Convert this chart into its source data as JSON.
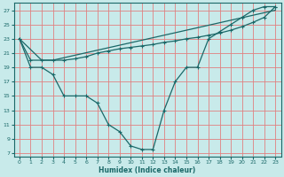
{
  "xlabel": "Humidex (Indice chaleur)",
  "bg_color": "#c8eaea",
  "grid_color": "#e08080",
  "line_color": "#1a6868",
  "xlim": [
    -0.5,
    23.5
  ],
  "ylim": [
    6.5,
    28
  ],
  "xticks": [
    0,
    1,
    2,
    3,
    4,
    5,
    6,
    7,
    8,
    9,
    10,
    11,
    12,
    13,
    14,
    15,
    16,
    17,
    18,
    19,
    20,
    21,
    22,
    23
  ],
  "yticks": [
    7,
    9,
    11,
    13,
    15,
    17,
    19,
    21,
    23,
    25,
    27
  ],
  "line1_x": [
    0,
    1,
    2,
    3,
    4,
    5,
    6,
    7,
    8,
    9,
    10,
    11,
    12,
    13,
    14,
    15,
    16,
    17,
    18,
    19,
    20,
    21,
    22,
    23
  ],
  "line1_y": [
    23,
    19,
    19,
    18,
    15,
    15,
    15,
    14,
    11,
    10,
    8,
    7.5,
    7.5,
    13,
    17,
    19,
    19,
    23,
    24,
    25,
    26,
    27,
    27.5,
    27.5
  ],
  "line2_x": [
    0,
    1,
    2,
    3,
    4,
    5,
    6,
    7,
    8,
    9,
    10,
    11,
    12,
    13,
    14,
    15,
    16,
    17,
    18,
    19,
    20,
    21,
    22,
    23
  ],
  "line2_y": [
    23,
    20,
    20,
    20,
    20,
    20.2,
    20.5,
    21,
    21.3,
    21.6,
    21.8,
    22,
    22.2,
    22.5,
    22.7,
    23,
    23.2,
    23.5,
    23.8,
    24.2,
    24.7,
    25.3,
    26,
    27.5
  ],
  "line3_x": [
    0,
    2,
    3,
    23
  ],
  "line3_y": [
    23,
    20,
    20,
    27
  ],
  "marker_x1": [
    0,
    1,
    2,
    3,
    4,
    5,
    6,
    7,
    8,
    9,
    10,
    11,
    12,
    13,
    14,
    15,
    16,
    17,
    18,
    19,
    20,
    21,
    22,
    23
  ],
  "marker_y1": [
    23,
    19,
    19,
    18,
    15,
    15,
    15,
    14,
    11,
    10,
    8,
    7.5,
    7.5,
    13,
    17,
    19,
    19,
    23,
    24,
    25,
    26,
    27,
    27.5,
    27.5
  ],
  "marker_x2": [
    0,
    1,
    2,
    3,
    4,
    5,
    6,
    7,
    8,
    9,
    10,
    11,
    12,
    13,
    14,
    15,
    16,
    17,
    18,
    19,
    20,
    21,
    22,
    23
  ],
  "marker_y2": [
    23,
    20,
    20,
    20,
    20,
    20.2,
    20.5,
    21,
    21.3,
    21.6,
    21.8,
    22,
    22.2,
    22.5,
    22.7,
    23,
    23.2,
    23.5,
    23.8,
    24.2,
    24.7,
    25.3,
    26,
    27.5
  ]
}
